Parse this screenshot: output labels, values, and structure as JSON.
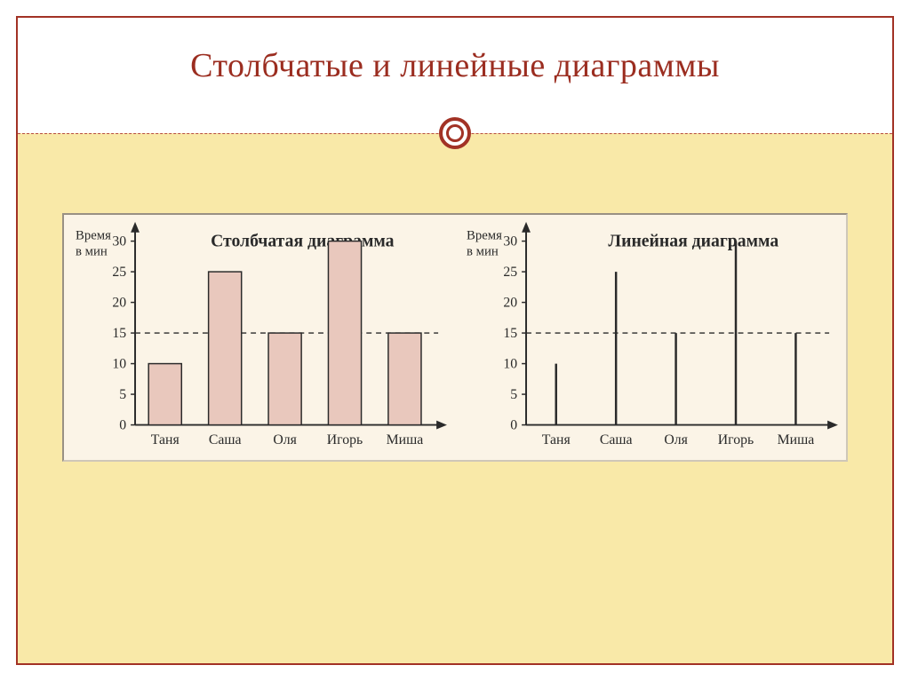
{
  "slide": {
    "title": "Столбчатые и линейные диаграммы",
    "title_color": "#9b2d20",
    "title_fontsize": 38,
    "frame_border_color": "#a23225",
    "content_background": "#f9e9a8",
    "panel_background": "#fbf4e7",
    "divider_color": "#a23225"
  },
  "shared": {
    "y_axis_label_line1": "Время",
    "y_axis_label_line2": "в мин",
    "ylim": [
      0,
      30
    ],
    "ytick_step": 5,
    "yticks": [
      0,
      5,
      10,
      15,
      20,
      25,
      30
    ],
    "reference_line_value": 15,
    "categories": [
      "Таня",
      "Саша",
      "Оля",
      "Игорь",
      "Миша"
    ],
    "values": [
      10,
      25,
      15,
      30,
      15
    ],
    "axis_color": "#2a2a2a",
    "text_color": "#2a2a2a",
    "label_fontsize": 15,
    "tick_fontsize": 16,
    "chart_title_fontsize": 20
  },
  "bar_chart": {
    "type": "bar",
    "title": "Столбчатая диаграмма",
    "bar_fill": "#e9c8bd",
    "bar_stroke": "#2a2a2a",
    "bar_width_ratio": 0.55
  },
  "line_chart": {
    "type": "lollipop",
    "title": "Линейная диаграмма",
    "line_color": "#2a2a2a",
    "line_width": 2.5
  }
}
